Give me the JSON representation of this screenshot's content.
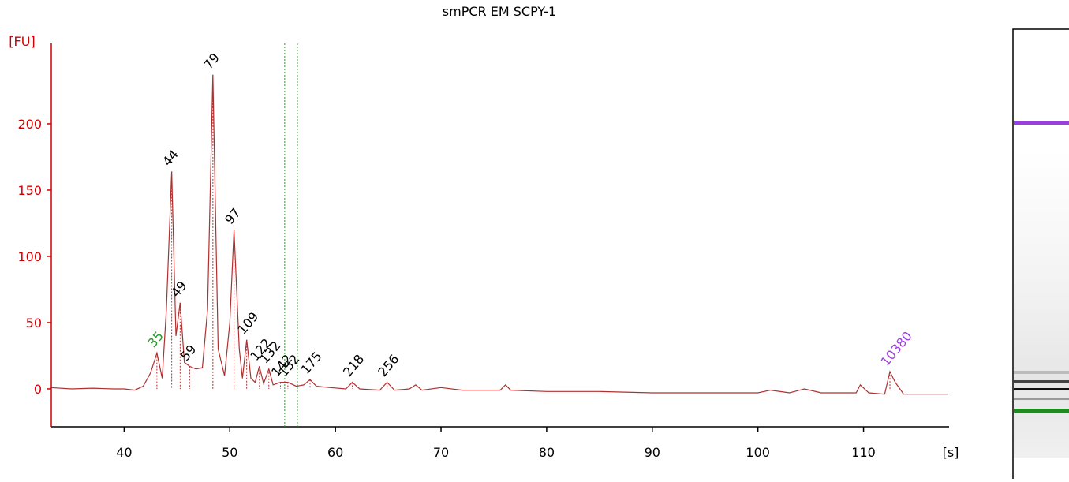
{
  "chart_data": {
    "type": "line",
    "title": "smPCR EM SCPY-1",
    "y_label": "[FU]",
    "x_label": "[s]",
    "x": [
      33,
      35,
      37,
      39,
      40,
      41,
      41.8,
      42.5,
      43.1,
      43.6,
      44.0,
      44.5,
      44.9,
      45.3,
      45.7,
      46.2,
      46.8,
      47.4,
      47.9,
      48.4,
      48.9,
      49.5,
      50.0,
      50.4,
      50.9,
      51.2,
      51.6,
      52.0,
      52.4,
      52.8,
      53.2,
      53.7,
      54.1,
      54.8,
      55.5,
      56.3,
      57.0,
      57.6,
      58.2,
      59.5,
      61.0,
      61.6,
      62.3,
      64.2,
      64.9,
      65.6,
      67.0,
      67.6,
      68.2,
      70.0,
      72,
      75.6,
      76.1,
      76.6,
      80,
      85,
      90,
      95,
      100,
      101.2,
      103,
      104.4,
      106,
      109.3,
      109.7,
      110.5,
      112.0,
      112.5,
      113.0,
      113.8,
      115,
      118
    ],
    "values": [
      1,
      0,
      0.5,
      0,
      0,
      -1,
      2,
      12,
      27,
      8,
      60,
      164,
      40,
      65,
      20,
      17,
      15,
      16,
      60,
      237,
      30,
      10,
      50,
      120,
      30,
      8,
      37,
      8,
      5,
      17,
      4,
      15,
      3,
      5,
      5,
      2,
      3,
      7,
      2,
      1,
      0,
      5,
      0,
      -1,
      5,
      -1,
      0,
      3,
      -1,
      1,
      -1,
      -1,
      3,
      -1,
      -2,
      -2,
      -3,
      -3,
      -3,
      -1,
      -3,
      0,
      -3,
      -3,
      3,
      -3,
      -4,
      13,
      5,
      -4,
      -4,
      -4
    ],
    "color": "#b03030",
    "y_axis_color": "#d00000",
    "xlim": [
      33.1,
      118.1
    ],
    "ylim": [
      -28.6,
      260.7
    ],
    "xticks": [
      40,
      50,
      60,
      70,
      80,
      90,
      100,
      110
    ],
    "yticks": [
      0,
      50,
      100,
      150,
      200
    ],
    "markers": [
      55.2,
      56.4
    ],
    "marker_color": "#2a9a2a",
    "peaks": [
      {
        "size": 35,
        "x": 43.1,
        "y": 27,
        "color": "#2a9a2a"
      },
      {
        "size": 44,
        "x": 44.5,
        "y": 164,
        "color": "#000000"
      },
      {
        "size": 49,
        "x": 45.3,
        "y": 65,
        "color": "#000000"
      },
      {
        "size": 59,
        "x": 46.2,
        "y": 17,
        "color": "#000000"
      },
      {
        "size": 79,
        "x": 48.4,
        "y": 237,
        "color": "#000000"
      },
      {
        "size": 97,
        "x": 50.4,
        "y": 120,
        "color": "#000000"
      },
      {
        "size": 109,
        "x": 51.6,
        "y": 37,
        "color": "#000000"
      },
      {
        "size": 122,
        "x": 52.8,
        "y": 17,
        "color": "#000000"
      },
      {
        "size": 132,
        "x": 53.7,
        "y": 15,
        "color": "#000000"
      },
      {
        "size": 142,
        "x": 54.8,
        "y": 5,
        "color": "#000000"
      },
      {
        "size": 152,
        "x": 55.5,
        "y": 5,
        "color": "#000000"
      },
      {
        "size": 175,
        "x": 57.6,
        "y": 7,
        "color": "#000000"
      },
      {
        "size": 218,
        "x": 61.6,
        "y": 5,
        "color": "#000000"
      },
      {
        "size": 256,
        "x": 64.9,
        "y": 5,
        "color": "#000000"
      },
      {
        "size": 10380,
        "x": 112.5,
        "y": 13,
        "color": "#9b3fe0"
      }
    ]
  }
}
